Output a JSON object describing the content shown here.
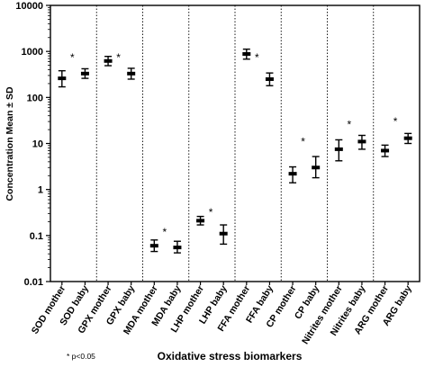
{
  "chart_data": {
    "type": "scatter",
    "subtype": "mean-with-error-bars",
    "xlabel": "Oxidative stress biomarkers",
    "ylabel": "Concentration  Mean ± SD",
    "yscale": "log",
    "ylim": [
      0.01,
      10000
    ],
    "yticks": [
      "0.01",
      "0.1",
      "1",
      "10",
      "100",
      "1000",
      "10000"
    ],
    "grid": false,
    "groups": [
      {
        "categories": [
          "SOD mother",
          "SOD baby"
        ]
      },
      {
        "categories": [
          "GPX mother",
          "GPX baby"
        ]
      },
      {
        "categories": [
          "MDA mother",
          "MDA baby"
        ]
      },
      {
        "categories": [
          "LHP mother",
          "LHP baby"
        ]
      },
      {
        "categories": [
          "FFA mother",
          "FFA baby"
        ]
      },
      {
        "categories": [
          "CP mother",
          "CP baby"
        ]
      },
      {
        "categories": [
          "Nitrites mother",
          "Nitrites baby"
        ]
      },
      {
        "categories": [
          "ARG mother",
          "ARG baby"
        ]
      }
    ],
    "points": [
      {
        "category": "SOD mother",
        "mean": 260,
        "low": 170,
        "high": 380
      },
      {
        "category": "SOD baby",
        "mean": 330,
        "low": 260,
        "high": 420
      },
      {
        "category": "GPX mother",
        "mean": 620,
        "low": 490,
        "high": 780
      },
      {
        "category": "GPX baby",
        "mean": 330,
        "low": 250,
        "high": 430
      },
      {
        "category": "MDA mother",
        "mean": 0.06,
        "low": 0.045,
        "high": 0.08
      },
      {
        "category": "MDA baby",
        "mean": 0.055,
        "low": 0.042,
        "high": 0.075
      },
      {
        "category": "LHP mother",
        "mean": 0.21,
        "low": 0.17,
        "high": 0.26
      },
      {
        "category": "LHP baby",
        "mean": 0.11,
        "low": 0.065,
        "high": 0.17
      },
      {
        "category": "FFA mother",
        "mean": 880,
        "low": 680,
        "high": 1120
      },
      {
        "category": "FFA baby",
        "mean": 250,
        "low": 180,
        "high": 340
      },
      {
        "category": "CP mother",
        "mean": 2.2,
        "low": 1.4,
        "high": 3.1
      },
      {
        "category": "CP baby",
        "mean": 3.0,
        "low": 1.8,
        "high": 5.2
      },
      {
        "category": "Nitrites mother",
        "mean": 7.5,
        "low": 4.2,
        "high": 12
      },
      {
        "category": "Nitrites baby",
        "mean": 11,
        "low": 7.5,
        "high": 15
      },
      {
        "category": "ARG mother",
        "mean": 7.0,
        "low": 5.2,
        "high": 9.2
      },
      {
        "category": "ARG baby",
        "mean": 13,
        "low": 10,
        "high": 16.5
      }
    ],
    "significance": [
      {
        "category": "SOD baby",
        "mark": "*",
        "y": 800
      },
      {
        "category": "GPX baby",
        "mark": "*",
        "y": 800
      },
      {
        "category": "MDA baby",
        "mark": "*",
        "y": 0.13
      },
      {
        "category": "LHP baby",
        "mark": "*",
        "y": 0.35
      },
      {
        "category": "FFA baby",
        "mark": "*",
        "y": 800
      },
      {
        "category": "CP baby",
        "mark": "*",
        "y": 12
      },
      {
        "category": "Nitrites baby",
        "mark": "*",
        "y": 28
      },
      {
        "category": "ARG baby",
        "mark": "*",
        "y": 33
      }
    ],
    "footnote": "* p<0.05"
  }
}
